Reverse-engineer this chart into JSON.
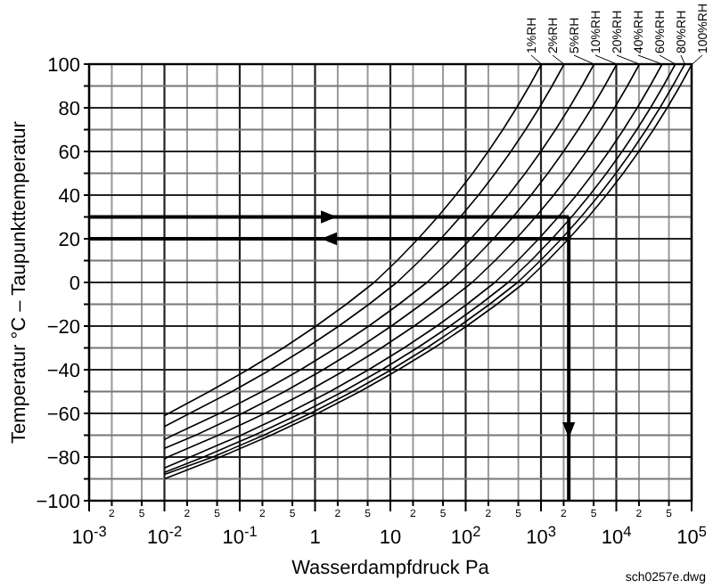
{
  "chart_data": {
    "type": "line",
    "xlabel": "Wasserdampfdruck Pa",
    "ylabel": "Temperatur °C  –  Taupunkttemperatur",
    "log": "x",
    "grid": true,
    "marker": "none",
    "line_style": "solid",
    "xlim": [
      0.001,
      100000
    ],
    "ylim": [
      -100,
      100
    ],
    "xticks": [
      {
        "value": 0.001,
        "label": "10$^{-3}$"
      },
      {
        "value": 0.002,
        "label": null
      },
      {
        "value": 0.005,
        "label": null
      },
      {
        "value": 0.01,
        "label": "10$^{-2}$"
      },
      {
        "value": 0.02,
        "label": null
      },
      {
        "value": 0.05,
        "label": null
      },
      {
        "value": 0.1,
        "label": "10$^{-1}$"
      },
      {
        "value": 0.2,
        "label": null
      },
      {
        "value": 0.5,
        "label": null
      },
      1,
      {
        "value": 2,
        "label": null
      },
      {
        "value": 5,
        "label": null
      },
      10,
      {
        "value": 20,
        "label": null
      },
      {
        "value": 50,
        "label": null
      },
      {
        "value": 100,
        "label": "10$^{2}$"
      },
      {
        "value": 200,
        "label": null
      },
      {
        "value": 500,
        "label": null
      },
      {
        "value": 1000,
        "label": "10$^{3}$"
      },
      {
        "value": 2000,
        "label": null
      },
      {
        "value": 5000,
        "label": null
      },
      {
        "value": 10000,
        "label": "10$^{4}$"
      },
      {
        "value": 20000,
        "label": null
      },
      {
        "value": 50000,
        "label": null
      },
      {
        "value": 100000,
        "label": "10$^{5}$"
      }
    ],
    "yticks": [
      -100,
      {
        "value": -90,
        "label": null
      },
      -80,
      {
        "value": -70,
        "label": null
      },
      -60,
      {
        "value": -50,
        "label": null
      },
      -40,
      {
        "value": -30,
        "label": null
      },
      -20,
      {
        "value": -10,
        "label": null
      },
      0,
      {
        "value": 10,
        "label": null
      },
      20,
      {
        "value": 30,
        "label": null
      },
      40,
      {
        "value": 50,
        "label": null
      },
      60,
      {
        "value": 70,
        "label": null
      },
      80,
      {
        "value": 90,
        "label": null
      },
      100
    ],
    "series": [
      {
        "name": "1%RH",
        "color": "#000000",
        "x": [
          0.01,
          0.0394,
          0.128,
          0.38,
          1.03,
          2.6,
          6.1,
          12.3,
          23.4,
          42.5,
          73.8,
          124,
          199,
          312,
          474,
          701,
          1014
        ],
        "values": [
          -61,
          -50,
          -40,
          -30,
          -20,
          -10,
          0,
          10,
          20,
          30,
          40,
          50,
          60,
          70,
          80,
          90,
          100
        ]
      },
      {
        "name": "2%RH",
        "color": "#000000",
        "x": [
          0.01,
          0.0216,
          0.0788,
          0.257,
          0.76,
          2.07,
          5.2,
          12.2,
          24.6,
          46.8,
          84.9,
          148,
          247,
          399,
          624,
          948,
          1403,
          2028
        ],
        "values": [
          -66,
          -60,
          -50,
          -40,
          -30,
          -20,
          -10,
          0,
          10,
          20,
          30,
          40,
          50,
          60,
          70,
          80,
          90,
          100
        ]
      },
      {
        "name": "5%RH",
        "color": "#000000",
        "x": [
          0.01,
          0.013,
          0.054,
          0.197,
          0.642,
          1.9,
          5.17,
          13,
          30.6,
          61.4,
          117,
          212,
          369,
          618,
          997,
          1560,
          2371,
          3507,
          5071
        ],
        "values": [
          -72,
          -70,
          -60,
          -50,
          -40,
          -30,
          -20,
          -10,
          0,
          10,
          20,
          30,
          40,
          50,
          60,
          70,
          80,
          90,
          100
        ]
      },
      {
        "name": "10%RH",
        "color": "#000000",
        "x": [
          0.01,
          0.026,
          0.108,
          0.394,
          1.28,
          3.8,
          10.3,
          26,
          61.1,
          123,
          234,
          425,
          738,
          1235,
          1994,
          3119,
          4741,
          7014,
          10142
        ],
        "values": [
          -76,
          -70,
          -60,
          -50,
          -40,
          -30,
          -20,
          -10,
          0,
          10,
          20,
          30,
          40,
          50,
          60,
          70,
          80,
          90,
          100
        ]
      },
      {
        "name": "20%RH",
        "color": "#000000",
        "x": [
          0.01,
          0.011,
          0.052,
          0.216,
          0.788,
          2.57,
          7.6,
          20.7,
          52,
          122,
          246,
          468,
          849,
          1477,
          2470,
          3988,
          6238,
          9482,
          14028,
          20284
        ],
        "values": [
          -81,
          -80,
          -70,
          -60,
          -50,
          -40,
          -30,
          -20,
          -10,
          0,
          10,
          20,
          30,
          40,
          50,
          60,
          70,
          80,
          90,
          100
        ]
      },
      {
        "name": "40%RH",
        "color": "#000000",
        "x": [
          0.01,
          0.022,
          0.104,
          0.432,
          1.58,
          5.14,
          15.2,
          41.3,
          104,
          244,
          491,
          936,
          1698,
          2954,
          4940,
          7976,
          12476,
          18964,
          28056,
          40568
        ],
        "values": [
          -85,
          -80,
          -70,
          -60,
          -50,
          -40,
          -30,
          -20,
          -10,
          0,
          10,
          20,
          30,
          40,
          50,
          60,
          70,
          80,
          90,
          100
        ]
      },
      {
        "name": "60%RH",
        "color": "#000000",
        "x": [
          0.01,
          0.033,
          0.156,
          0.648,
          2.36,
          7.7,
          22.8,
          62,
          156,
          367,
          737,
          1403,
          2548,
          4430,
          7410,
          11964,
          18714,
          28446,
          42084,
          60852
        ],
        "values": [
          -87,
          -80,
          -70,
          -60,
          -50,
          -40,
          -30,
          -20,
          -10,
          0,
          10,
          20,
          30,
          40,
          50,
          60,
          70,
          80,
          90,
          100
        ]
      },
      {
        "name": "80%RH",
        "color": "#000000",
        "x": [
          0.01,
          0.044,
          0.208,
          0.864,
          3.15,
          10.3,
          30.4,
          82.6,
          208,
          489,
          982,
          1871,
          3397,
          5907,
          9880,
          15952,
          24952,
          37928,
          56112,
          81136
        ],
        "values": [
          -88,
          -80,
          -70,
          -60,
          -50,
          -40,
          -30,
          -20,
          -10,
          0,
          10,
          20,
          30,
          40,
          50,
          60,
          70,
          80,
          90,
          100
        ]
      },
      {
        "name": "100%RH",
        "color": "#000000",
        "x": [
          0.01,
          0.055,
          0.26,
          1.08,
          3.94,
          12.8,
          38,
          103,
          260,
          611,
          1228,
          2339,
          4246,
          7384,
          12350,
          19940,
          31190,
          47410,
          70140,
          100000
        ],
        "values": [
          -90,
          -80,
          -70,
          -60,
          -50,
          -40,
          -30,
          -20,
          -10,
          0,
          10,
          20,
          30,
          40,
          50,
          60,
          70,
          80,
          90,
          99.7
        ]
      }
    ],
    "ref_lines": [
      {
        "axis": "y",
        "value": 30,
        "color": "#000000"
      },
      {
        "axis": "y",
        "value": 20,
        "color": "#000000"
      },
      {
        "axis": "x",
        "value": 2339,
        "color": "#000000"
      }
    ],
    "annotations": [
      "sch0257e.dwg",
      "2",
      "5",
      "2",
      "5",
      "2",
      "5",
      "2",
      "5",
      "2",
      "5",
      "2",
      "5",
      "2",
      "5",
      "2",
      "5"
    ]
  }
}
